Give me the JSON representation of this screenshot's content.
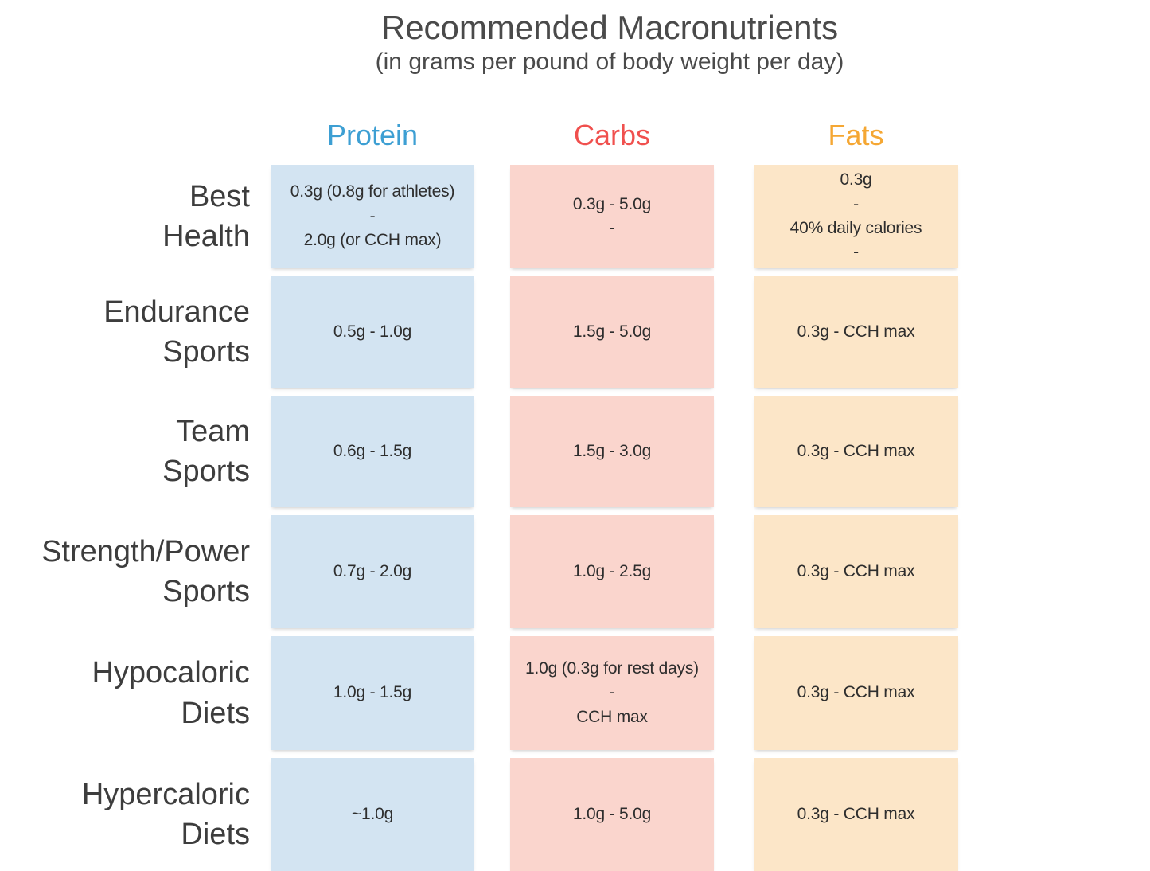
{
  "title": "Recommended Macronutrients",
  "subtitle": "(in grams per pound of body weight per day)",
  "colors": {
    "protein_header": "#3d9fd3",
    "carbs_header": "#f0504e",
    "fats_header": "#f5a733",
    "protein_cell_bg": "#d3e4f2",
    "carbs_cell_bg": "#fad5cd",
    "fats_cell_bg": "#fce6c8",
    "label_text": "#3d3d3d"
  },
  "chart_data": {
    "type": "table",
    "title": "Recommended Macronutrients",
    "subtitle": "(in grams per pound of body weight per day)",
    "columns": {
      "protein": "Protein",
      "carbs": "Carbs",
      "fats": "Fats"
    },
    "rows": [
      {
        "label": [
          "Best",
          "Health"
        ],
        "protein": [
          "0.3g (0.8g for athletes)",
          "-",
          "2.0g (or CCH max)"
        ],
        "carbs": [
          "0.3g - 5.0g",
          "-"
        ],
        "fats": [
          "0.3g",
          "-",
          "40% daily calories",
          "-"
        ]
      },
      {
        "label": [
          "Endurance",
          "Sports"
        ],
        "protein": [
          "0.5g - 1.0g"
        ],
        "carbs": [
          "1.5g - 5.0g"
        ],
        "fats": [
          "0.3g - CCH max"
        ]
      },
      {
        "label": [
          "Team",
          "Sports"
        ],
        "protein": [
          "0.6g - 1.5g"
        ],
        "carbs": [
          "1.5g - 3.0g"
        ],
        "fats": [
          "0.3g - CCH max"
        ]
      },
      {
        "label": [
          "Strength/Power",
          "Sports"
        ],
        "protein": [
          "0.7g - 2.0g"
        ],
        "carbs": [
          "1.0g - 2.5g"
        ],
        "fats": [
          "0.3g - CCH max"
        ]
      },
      {
        "label": [
          "Hypocaloric",
          "Diets"
        ],
        "protein": [
          "1.0g - 1.5g"
        ],
        "carbs": [
          "1.0g (0.3g for rest days)",
          "-",
          "CCH max"
        ],
        "fats": [
          "0.3g - CCH max"
        ]
      },
      {
        "label": [
          "Hypercaloric",
          "Diets"
        ],
        "protein": [
          "~1.0g"
        ],
        "carbs": [
          "1.0g - 5.0g"
        ],
        "fats": [
          "0.3g - CCH max"
        ]
      }
    ]
  }
}
